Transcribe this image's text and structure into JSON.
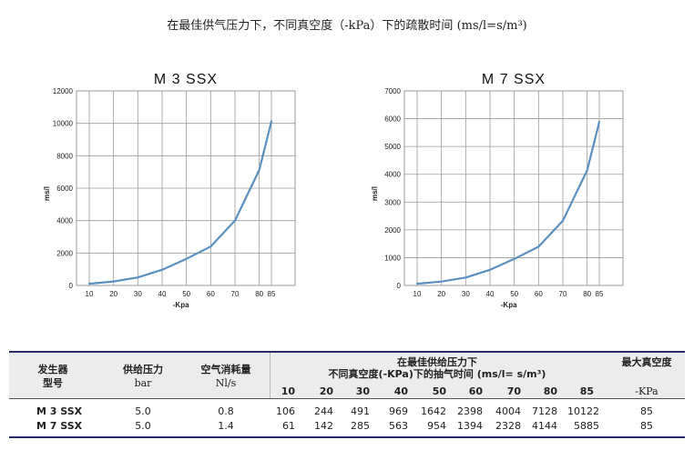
{
  "page": {
    "title": "在最佳供气压力下，不同真空度（-kPa）下的疏散时间 (ms/l=s/m³)"
  },
  "chart_data": [
    {
      "type": "line",
      "title": "M 3 SSX",
      "xlabel": "-Kpa",
      "ylabel": "ms/l",
      "x": [
        10,
        20,
        30,
        40,
        50,
        60,
        70,
        80,
        85
      ],
      "values": [
        106,
        244,
        491,
        969,
        1642,
        2398,
        4004,
        7128,
        10122
      ],
      "ylim": [
        0,
        12000
      ],
      "yticks": [
        0,
        2000,
        4000,
        6000,
        8000,
        10000,
        12000
      ],
      "grid": true,
      "color": "#5b8fc0"
    },
    {
      "type": "line",
      "title": "M 7 SSX",
      "xlabel": "-Kpa",
      "ylabel": "ms/l",
      "x": [
        10,
        20,
        30,
        40,
        50,
        60,
        70,
        80,
        85
      ],
      "values": [
        61,
        142,
        285,
        563,
        954,
        1394,
        2328,
        4144,
        5885
      ],
      "ylim": [
        0,
        7000
      ],
      "yticks": [
        0,
        1000,
        2000,
        3000,
        4000,
        5000,
        6000,
        7000
      ],
      "grid": true,
      "color": "#5b8fc0"
    }
  ],
  "table": {
    "col_model": [
      "发生器",
      "型号"
    ],
    "col_pressure": [
      "供给压力",
      "bar"
    ],
    "col_air": [
      "空气消耗量",
      "Nl/s"
    ],
    "col_time": [
      "在最佳供给压力下",
      "不同真空度(-KPa)下的抽气时间  (ms/l= s/m³)"
    ],
    "col_max": [
      "最大真空度",
      "-KPa"
    ],
    "kpa": [
      "10",
      "20",
      "30",
      "40",
      "50",
      "60",
      "70",
      "80",
      "85"
    ],
    "rows": [
      {
        "model": "M 3 SSX",
        "pressure": "5.0",
        "air": "0.8",
        "times": [
          "106",
          "244",
          "491",
          "969",
          "1642",
          "2398",
          "4004",
          "7128",
          "10122"
        ],
        "max": "85"
      },
      {
        "model": "M 7 SSX",
        "pressure": "5.0",
        "air": "1.4",
        "times": [
          "61",
          "142",
          "285",
          "563",
          "954",
          "1394",
          "2328",
          "4144",
          "5885"
        ],
        "max": "85"
      }
    ]
  }
}
